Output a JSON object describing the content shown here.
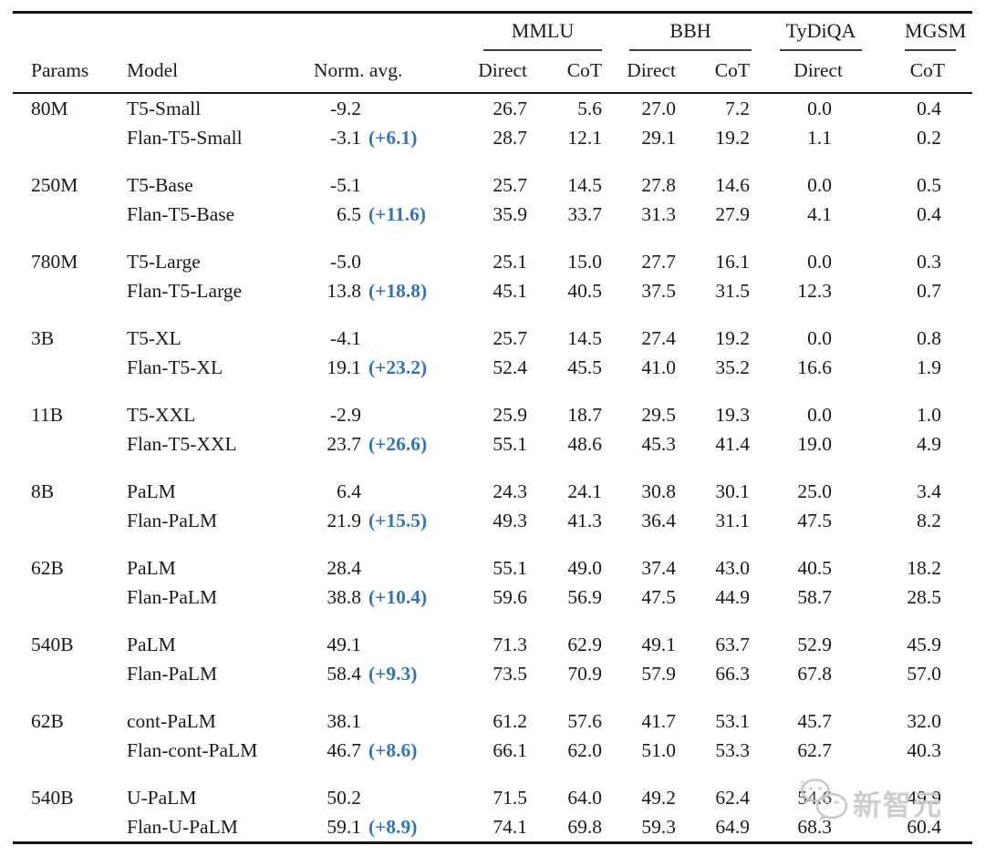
{
  "colors": {
    "accent_blue": "#3273bd",
    "rule_black": "#141414",
    "text": "#1a1a1a",
    "watermark_gray": "#c9c9c9"
  },
  "table": {
    "headers": {
      "params": "Params",
      "model": "Model",
      "norm_avg": "Norm. avg."
    },
    "benchmark_groups": [
      {
        "label": "MMLU",
        "sub": [
          "Direct",
          "CoT"
        ]
      },
      {
        "label": "BBH",
        "sub": [
          "Direct",
          "CoT"
        ]
      },
      {
        "label": "TyDiQA",
        "sub": [
          "Direct"
        ]
      },
      {
        "label": "MGSM",
        "sub": [
          "CoT"
        ]
      }
    ],
    "sub_headers": [
      "Direct",
      "CoT",
      "Direct",
      "CoT",
      "Direct",
      "CoT"
    ],
    "groups": [
      {
        "params": "80M",
        "rows": [
          {
            "model": "T5-Small",
            "norm_avg": "-9.2",
            "delta": "",
            "values": [
              "26.7",
              "5.6",
              "27.0",
              "7.2",
              "0.0",
              "0.4"
            ]
          },
          {
            "model": "Flan-T5-Small",
            "norm_avg": "-3.1",
            "delta": "(+6.1)",
            "values": [
              "28.7",
              "12.1",
              "29.1",
              "19.2",
              "1.1",
              "0.2"
            ]
          }
        ]
      },
      {
        "params": "250M",
        "rows": [
          {
            "model": "T5-Base",
            "norm_avg": "-5.1",
            "delta": "",
            "values": [
              "25.7",
              "14.5",
              "27.8",
              "14.6",
              "0.0",
              "0.5"
            ]
          },
          {
            "model": "Flan-T5-Base",
            "norm_avg": "6.5",
            "delta": "(+11.6)",
            "values": [
              "35.9",
              "33.7",
              "31.3",
              "27.9",
              "4.1",
              "0.4"
            ]
          }
        ]
      },
      {
        "params": "780M",
        "rows": [
          {
            "model": "T5-Large",
            "norm_avg": "-5.0",
            "delta": "",
            "values": [
              "25.1",
              "15.0",
              "27.7",
              "16.1",
              "0.0",
              "0.3"
            ]
          },
          {
            "model": "Flan-T5-Large",
            "norm_avg": "13.8",
            "delta": "(+18.8)",
            "values": [
              "45.1",
              "40.5",
              "37.5",
              "31.5",
              "12.3",
              "0.7"
            ]
          }
        ]
      },
      {
        "params": "3B",
        "rows": [
          {
            "model": "T5-XL",
            "norm_avg": "-4.1",
            "delta": "",
            "values": [
              "25.7",
              "14.5",
              "27.4",
              "19.2",
              "0.0",
              "0.8"
            ]
          },
          {
            "model": "Flan-T5-XL",
            "norm_avg": "19.1",
            "delta": "(+23.2)",
            "values": [
              "52.4",
              "45.5",
              "41.0",
              "35.2",
              "16.6",
              "1.9"
            ]
          }
        ]
      },
      {
        "params": "11B",
        "rows": [
          {
            "model": "T5-XXL",
            "norm_avg": "-2.9",
            "delta": "",
            "values": [
              "25.9",
              "18.7",
              "29.5",
              "19.3",
              "0.0",
              "1.0"
            ]
          },
          {
            "model": "Flan-T5-XXL",
            "norm_avg": "23.7",
            "delta": "(+26.6)",
            "values": [
              "55.1",
              "48.6",
              "45.3",
              "41.4",
              "19.0",
              "4.9"
            ]
          }
        ]
      },
      {
        "params": "8B",
        "rows": [
          {
            "model": "PaLM",
            "norm_avg": "6.4",
            "delta": "",
            "values": [
              "24.3",
              "24.1",
              "30.8",
              "30.1",
              "25.0",
              "3.4"
            ]
          },
          {
            "model": "Flan-PaLM",
            "norm_avg": "21.9",
            "delta": "(+15.5)",
            "values": [
              "49.3",
              "41.3",
              "36.4",
              "31.1",
              "47.5",
              "8.2"
            ]
          }
        ]
      },
      {
        "params": "62B",
        "rows": [
          {
            "model": "PaLM",
            "norm_avg": "28.4",
            "delta": "",
            "values": [
              "55.1",
              "49.0",
              "37.4",
              "43.0",
              "40.5",
              "18.2"
            ]
          },
          {
            "model": "Flan-PaLM",
            "norm_avg": "38.8",
            "delta": "(+10.4)",
            "values": [
              "59.6",
              "56.9",
              "47.5",
              "44.9",
              "58.7",
              "28.5"
            ]
          }
        ]
      },
      {
        "params": "540B",
        "rows": [
          {
            "model": "PaLM",
            "norm_avg": "49.1",
            "delta": "",
            "values": [
              "71.3",
              "62.9",
              "49.1",
              "63.7",
              "52.9",
              "45.9"
            ]
          },
          {
            "model": "Flan-PaLM",
            "norm_avg": "58.4",
            "delta": "(+9.3)",
            "values": [
              "73.5",
              "70.9",
              "57.9",
              "66.3",
              "67.8",
              "57.0"
            ]
          }
        ]
      },
      {
        "params": "62B",
        "rows": [
          {
            "model": "cont-PaLM",
            "norm_avg": "38.1",
            "delta": "",
            "values": [
              "61.2",
              "57.6",
              "41.7",
              "53.1",
              "45.7",
              "32.0"
            ]
          },
          {
            "model": "Flan-cont-PaLM",
            "norm_avg": "46.7",
            "delta": "(+8.6)",
            "values": [
              "66.1",
              "62.0",
              "51.0",
              "53.3",
              "62.7",
              "40.3"
            ]
          }
        ]
      },
      {
        "params": "540B",
        "rows": [
          {
            "model": "U-PaLM",
            "norm_avg": "50.2",
            "delta": "",
            "values": [
              "71.5",
              "64.0",
              "49.2",
              "62.4",
              "54.6",
              "49.9"
            ]
          },
          {
            "model": "Flan-U-PaLM",
            "norm_avg": "59.1",
            "delta": "(+8.9)",
            "values": [
              "74.1",
              "69.8",
              "59.3",
              "64.9",
              "68.3",
              "60.4"
            ]
          }
        ]
      }
    ]
  },
  "watermark": {
    "text": "新智元",
    "icon": "wechat-bubbles-icon"
  }
}
